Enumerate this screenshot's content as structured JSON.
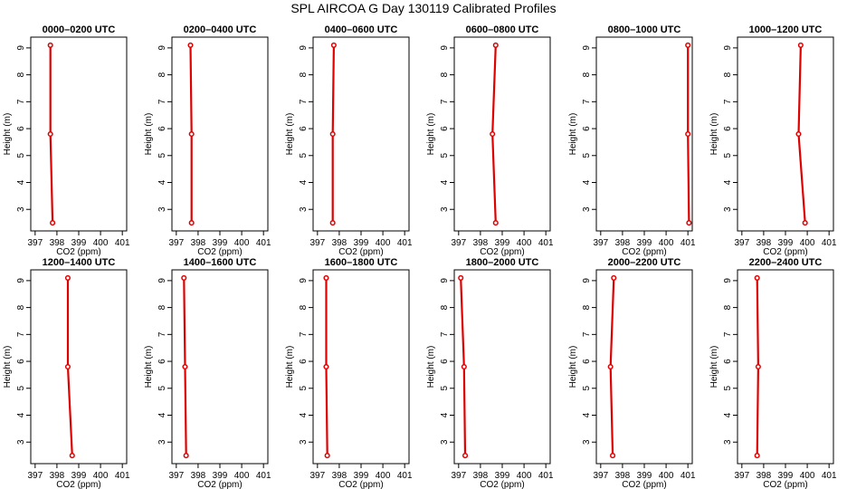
{
  "figure": {
    "title": "SPL AIRCOA G  Day 130119  Calibrated Profiles",
    "colors": {
      "profile": "#e00000",
      "axis": "#000000",
      "background": "#ffffff"
    }
  },
  "chart_data": [
    {
      "type": "line",
      "title": "0000–0200 UTC",
      "xlabel": "CO2 (ppm)",
      "ylabel": "Height (m)",
      "xlim": [
        397,
        401
      ],
      "ylim": [
        2.5,
        9.1
      ],
      "xticks": [
        397,
        398,
        399,
        400,
        401
      ],
      "yticks": [
        3,
        4,
        5,
        6,
        7,
        8,
        9
      ],
      "grid": false,
      "series": [
        {
          "x": [
            397.8,
            397.7,
            397.7
          ],
          "y": [
            2.5,
            5.8,
            9.1
          ]
        }
      ]
    },
    {
      "type": "line",
      "title": "0200–0400 UTC",
      "xlabel": "CO2 (ppm)",
      "ylabel": "Height (m)",
      "xlim": [
        397,
        401
      ],
      "ylim": [
        2.5,
        9.1
      ],
      "xticks": [
        397,
        398,
        399,
        400,
        401
      ],
      "yticks": [
        3,
        4,
        5,
        6,
        7,
        8,
        9
      ],
      "grid": false,
      "series": [
        {
          "x": [
            397.7,
            397.7,
            397.65
          ],
          "y": [
            2.5,
            5.8,
            9.1
          ]
        }
      ]
    },
    {
      "type": "line",
      "title": "0400–0600 UTC",
      "xlabel": "CO2 (ppm)",
      "ylabel": "Height (m)",
      "xlim": [
        397,
        401
      ],
      "ylim": [
        2.5,
        9.1
      ],
      "xticks": [
        397,
        398,
        399,
        400,
        401
      ],
      "yticks": [
        3,
        4,
        5,
        6,
        7,
        8,
        9
      ],
      "grid": false,
      "series": [
        {
          "x": [
            397.7,
            397.7,
            397.75
          ],
          "y": [
            2.5,
            5.8,
            9.1
          ]
        }
      ]
    },
    {
      "type": "line",
      "title": "0600–0800 UTC",
      "xlabel": "CO2 (ppm)",
      "ylabel": "Height (m)",
      "xlim": [
        397,
        401
      ],
      "ylim": [
        2.5,
        9.1
      ],
      "xticks": [
        397,
        398,
        399,
        400,
        401
      ],
      "yticks": [
        3,
        4,
        5,
        6,
        7,
        8,
        9
      ],
      "grid": false,
      "series": [
        {
          "x": [
            398.7,
            398.55,
            398.7
          ],
          "y": [
            2.5,
            5.8,
            9.1
          ]
        }
      ]
    },
    {
      "type": "line",
      "title": "0800–1000 UTC",
      "xlabel": "CO2 (ppm)",
      "ylabel": "Height (m)",
      "xlim": [
        397,
        401
      ],
      "ylim": [
        2.5,
        9.1
      ],
      "xticks": [
        397,
        398,
        399,
        400,
        401
      ],
      "yticks": [
        3,
        4,
        5,
        6,
        7,
        8,
        9
      ],
      "grid": false,
      "series": [
        {
          "x": [
            401.05,
            401.0,
            401.0
          ],
          "y": [
            2.5,
            5.8,
            9.1
          ]
        }
      ]
    },
    {
      "type": "line",
      "title": "1000–1200 UTC",
      "xlabel": "CO2 (ppm)",
      "ylabel": "Height (m)",
      "xlim": [
        397,
        401
      ],
      "ylim": [
        2.5,
        9.1
      ],
      "xticks": [
        397,
        398,
        399,
        400,
        401
      ],
      "yticks": [
        3,
        4,
        5,
        6,
        7,
        8,
        9
      ],
      "grid": false,
      "series": [
        {
          "x": [
            399.9,
            399.6,
            399.7
          ],
          "y": [
            2.5,
            5.8,
            9.1
          ]
        }
      ]
    },
    {
      "type": "line",
      "title": "1200–1400 UTC",
      "xlabel": "CO2 (ppm)",
      "ylabel": "Height (m)",
      "xlim": [
        397,
        401
      ],
      "ylim": [
        2.5,
        9.1
      ],
      "xticks": [
        397,
        398,
        399,
        400,
        401
      ],
      "yticks": [
        3,
        4,
        5,
        6,
        7,
        8,
        9
      ],
      "grid": false,
      "series": [
        {
          "x": [
            398.7,
            398.5,
            398.5
          ],
          "y": [
            2.5,
            5.8,
            9.1
          ]
        }
      ]
    },
    {
      "type": "line",
      "title": "1400–1600 UTC",
      "xlabel": "CO2 (ppm)",
      "ylabel": "Height (m)",
      "xlim": [
        397,
        401
      ],
      "ylim": [
        2.5,
        9.1
      ],
      "xticks": [
        397,
        398,
        399,
        400,
        401
      ],
      "yticks": [
        3,
        4,
        5,
        6,
        7,
        8,
        9
      ],
      "grid": false,
      "series": [
        {
          "x": [
            397.45,
            397.4,
            397.35
          ],
          "y": [
            2.5,
            5.8,
            9.1
          ]
        }
      ]
    },
    {
      "type": "line",
      "title": "1600–1800 UTC",
      "xlabel": "CO2 (ppm)",
      "ylabel": "Height (m)",
      "xlim": [
        397,
        401
      ],
      "ylim": [
        2.5,
        9.1
      ],
      "xticks": [
        397,
        398,
        399,
        400,
        401
      ],
      "yticks": [
        3,
        4,
        5,
        6,
        7,
        8,
        9
      ],
      "grid": false,
      "series": [
        {
          "x": [
            397.45,
            397.4,
            397.4
          ],
          "y": [
            2.5,
            5.8,
            9.1
          ]
        }
      ]
    },
    {
      "type": "line",
      "title": "1800–2000 UTC",
      "xlabel": "CO2 (ppm)",
      "ylabel": "Height (m)",
      "xlim": [
        397,
        401
      ],
      "ylim": [
        2.5,
        9.1
      ],
      "xticks": [
        397,
        398,
        399,
        400,
        401
      ],
      "yticks": [
        3,
        4,
        5,
        6,
        7,
        8,
        9
      ],
      "grid": false,
      "series": [
        {
          "x": [
            397.3,
            397.25,
            397.1
          ],
          "y": [
            2.5,
            5.8,
            9.1
          ]
        }
      ]
    },
    {
      "type": "line",
      "title": "2000–2200 UTC",
      "xlabel": "CO2 (ppm)",
      "ylabel": "Height (m)",
      "xlim": [
        397,
        401
      ],
      "ylim": [
        2.5,
        9.1
      ],
      "xticks": [
        397,
        398,
        399,
        400,
        401
      ],
      "yticks": [
        3,
        4,
        5,
        6,
        7,
        8,
        9
      ],
      "grid": false,
      "series": [
        {
          "x": [
            397.55,
            397.45,
            397.6
          ],
          "y": [
            2.5,
            5.8,
            9.1
          ]
        }
      ]
    },
    {
      "type": "line",
      "title": "2200–2400 UTC",
      "xlabel": "CO2 (ppm)",
      "ylabel": "Height (m)",
      "xlim": [
        397,
        401
      ],
      "ylim": [
        2.5,
        9.1
      ],
      "xticks": [
        397,
        398,
        399,
        400,
        401
      ],
      "yticks": [
        3,
        4,
        5,
        6,
        7,
        8,
        9
      ],
      "grid": false,
      "series": [
        {
          "x": [
            397.7,
            397.75,
            397.7
          ],
          "y": [
            2.5,
            5.8,
            9.1
          ]
        }
      ]
    }
  ]
}
